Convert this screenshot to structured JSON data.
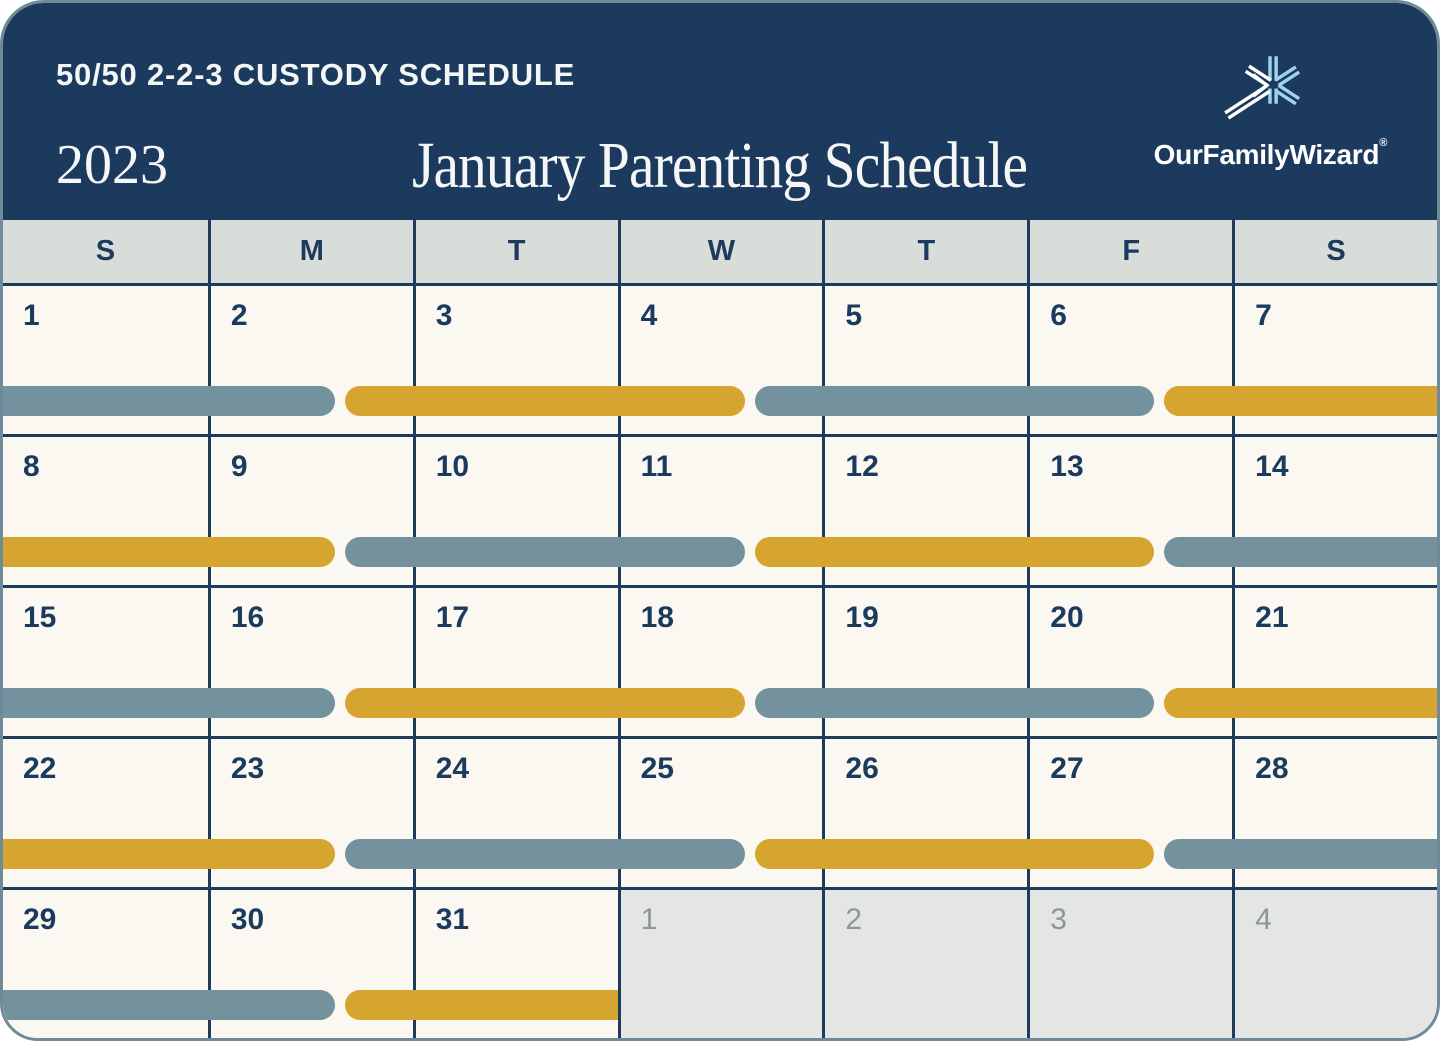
{
  "header": {
    "schedule_type": "50/50 2-2-3 CUSTODY SCHEDULE",
    "year": "2023",
    "title": "January Parenting Schedule",
    "brand": "OurFamilyWizard",
    "registered": "®"
  },
  "colors": {
    "navy": "#1C3A5E",
    "grid": "#1E3A5C",
    "cream": "#FAF8F1",
    "weekday_bg": "#D9DDD9",
    "muted_bg": "#E3E6E2",
    "muted_text": "#8E959B",
    "parent_a": "#74919E",
    "parent_b": "#D6A52F",
    "logo_blue": "#9ED3EC",
    "card_border": "#6F8A99"
  },
  "calendar": {
    "day_headers": [
      "S",
      "M",
      "T",
      "W",
      "T",
      "F",
      "S"
    ],
    "weeks": [
      {
        "days": [
          {
            "n": "1"
          },
          {
            "n": "2"
          },
          {
            "n": "3"
          },
          {
            "n": "4"
          },
          {
            "n": "5"
          },
          {
            "n": "6"
          },
          {
            "n": "7"
          }
        ],
        "segments": [
          {
            "parent": "a",
            "from": 0,
            "to": 1.645,
            "round_start": false,
            "round_end": true
          },
          {
            "parent": "b",
            "from": 1.645,
            "to": 3.645,
            "round_start": true,
            "round_end": true
          },
          {
            "parent": "a",
            "from": 3.645,
            "to": 5.645,
            "round_start": true,
            "round_end": true
          },
          {
            "parent": "b",
            "from": 5.645,
            "to": 7,
            "round_start": true,
            "round_end": false
          }
        ]
      },
      {
        "days": [
          {
            "n": "8"
          },
          {
            "n": "9"
          },
          {
            "n": "10"
          },
          {
            "n": "11"
          },
          {
            "n": "12"
          },
          {
            "n": "13"
          },
          {
            "n": "14"
          }
        ],
        "segments": [
          {
            "parent": "b",
            "from": 0,
            "to": 1.645,
            "round_start": false,
            "round_end": true
          },
          {
            "parent": "a",
            "from": 1.645,
            "to": 3.645,
            "round_start": true,
            "round_end": true
          },
          {
            "parent": "b",
            "from": 3.645,
            "to": 5.645,
            "round_start": true,
            "round_end": true
          },
          {
            "parent": "a",
            "from": 5.645,
            "to": 7,
            "round_start": true,
            "round_end": false
          }
        ]
      },
      {
        "days": [
          {
            "n": "15"
          },
          {
            "n": "16"
          },
          {
            "n": "17"
          },
          {
            "n": "18"
          },
          {
            "n": "19"
          },
          {
            "n": "20"
          },
          {
            "n": "21"
          }
        ],
        "segments": [
          {
            "parent": "a",
            "from": 0,
            "to": 1.645,
            "round_start": false,
            "round_end": true
          },
          {
            "parent": "b",
            "from": 1.645,
            "to": 3.645,
            "round_start": true,
            "round_end": true
          },
          {
            "parent": "a",
            "from": 3.645,
            "to": 5.645,
            "round_start": true,
            "round_end": true
          },
          {
            "parent": "b",
            "from": 5.645,
            "to": 7,
            "round_start": true,
            "round_end": false
          }
        ]
      },
      {
        "days": [
          {
            "n": "22"
          },
          {
            "n": "23"
          },
          {
            "n": "24"
          },
          {
            "n": "25"
          },
          {
            "n": "26"
          },
          {
            "n": "27"
          },
          {
            "n": "28"
          }
        ],
        "segments": [
          {
            "parent": "b",
            "from": 0,
            "to": 1.645,
            "round_start": false,
            "round_end": true
          },
          {
            "parent": "a",
            "from": 1.645,
            "to": 3.645,
            "round_start": true,
            "round_end": true
          },
          {
            "parent": "b",
            "from": 3.645,
            "to": 5.645,
            "round_start": true,
            "round_end": true
          },
          {
            "parent": "a",
            "from": 5.645,
            "to": 7,
            "round_start": true,
            "round_end": false
          }
        ]
      },
      {
        "days": [
          {
            "n": "29"
          },
          {
            "n": "30"
          },
          {
            "n": "31"
          },
          {
            "n": "1",
            "muted": true
          },
          {
            "n": "2",
            "muted": true
          },
          {
            "n": "3",
            "muted": true
          },
          {
            "n": "4",
            "muted": true
          }
        ],
        "segments": [
          {
            "parent": "a",
            "from": 0,
            "to": 1.645,
            "round_start": false,
            "round_end": true
          },
          {
            "parent": "b",
            "from": 1.645,
            "to": 3,
            "round_start": true,
            "round_end": false
          }
        ]
      }
    ]
  }
}
